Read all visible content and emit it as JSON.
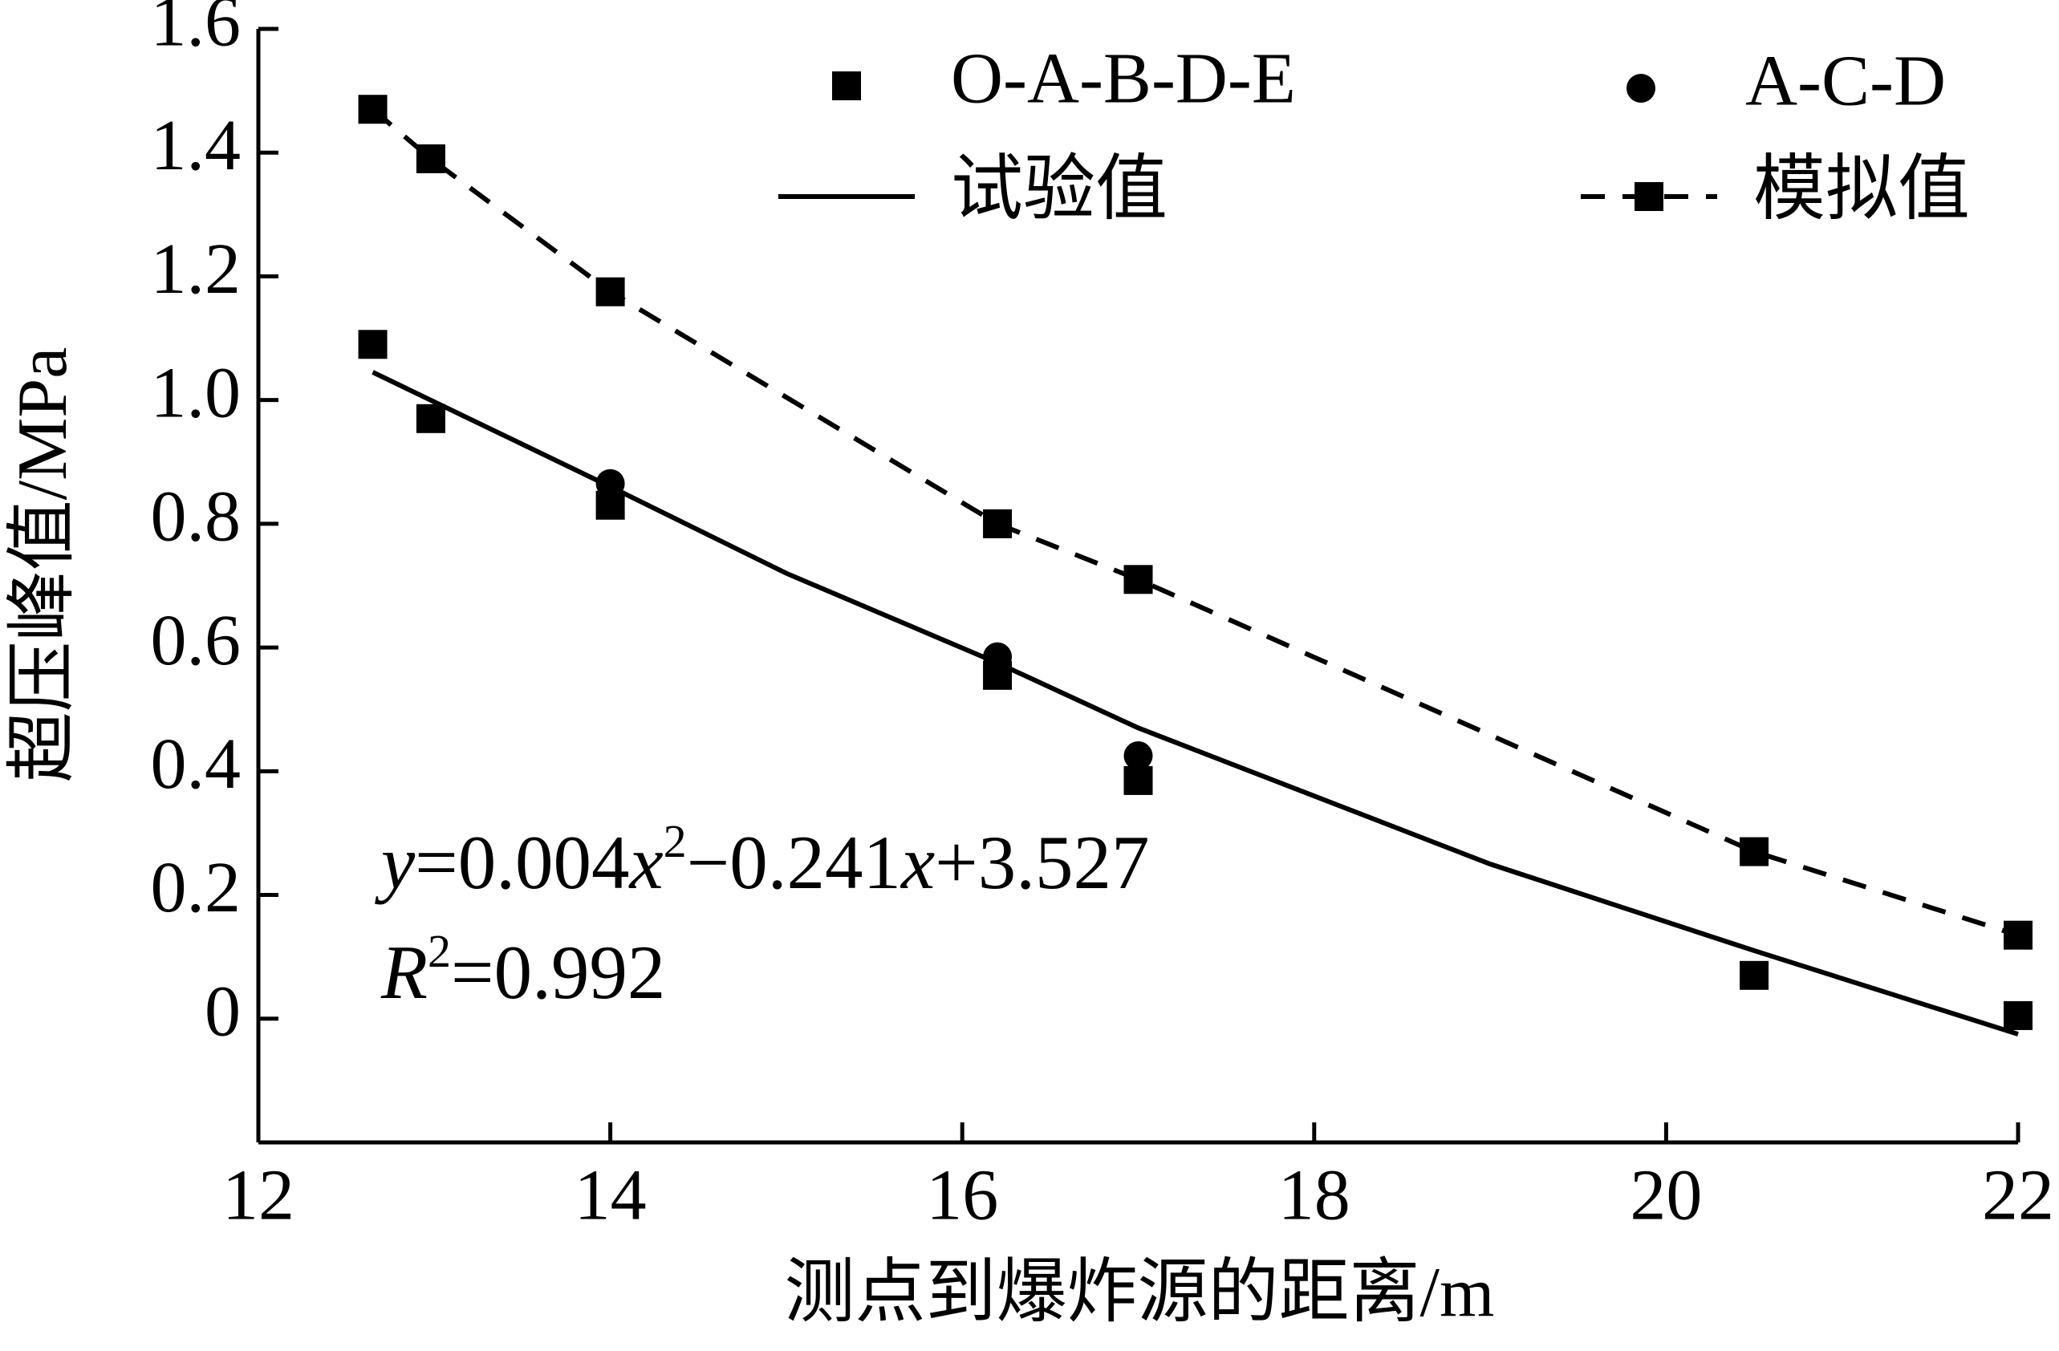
{
  "chart_data": {
    "type": "line",
    "xlabel": "测点到爆炸源的距离/m",
    "ylabel": "超压峰值/MPa",
    "xlim": [
      12,
      22
    ],
    "xticks": [
      12,
      14,
      16,
      18,
      20,
      22
    ],
    "ylim": [
      -0.2,
      1.6
    ],
    "yticks": [
      0,
      0.2,
      0.4,
      0.6,
      0.8,
      {
        "value": 1,
        "label": "1.0"
      },
      1.2,
      1.4,
      1.6
    ],
    "series": [
      {
        "name": "O-A-B-D-E",
        "color": "#000000",
        "marker": "square",
        "line": "none",
        "x": [
          12.65,
          12.98,
          14,
          16.2,
          17,
          20.5,
          22
        ],
        "values": [
          1.09,
          0.97,
          0.83,
          0.555,
          0.385,
          0.07,
          0.005
        ]
      },
      {
        "name": "A-C-D",
        "color": "#000000",
        "marker": "circle",
        "line": "none",
        "x": [
          14,
          16.2,
          17
        ],
        "values": [
          0.865,
          0.585,
          0.425
        ]
      },
      {
        "name": "试验值",
        "color": "#000000",
        "marker": "none",
        "line": "solid",
        "x": [
          12.65,
          14,
          15,
          16.2,
          17,
          18,
          19,
          20.5,
          22
        ],
        "values": [
          1.045,
          0.86,
          0.72,
          0.575,
          0.47,
          0.36,
          0.25,
          0.11,
          -0.025
        ]
      },
      {
        "name": "模拟值",
        "color": "#000000",
        "marker": "square",
        "line": "dashed",
        "x": [
          12.65,
          12.98,
          14,
          16.2,
          17,
          20.5,
          22
        ],
        "values": [
          1.47,
          1.39,
          1.175,
          0.8,
          0.71,
          0.27,
          0.135
        ]
      }
    ],
    "annotations": [
      [
        "y",
        "=0.004",
        "x",
        "2",
        "−0.241",
        "x",
        "+3.527"
      ],
      [
        "R",
        "2",
        "=0.992"
      ]
    ]
  }
}
